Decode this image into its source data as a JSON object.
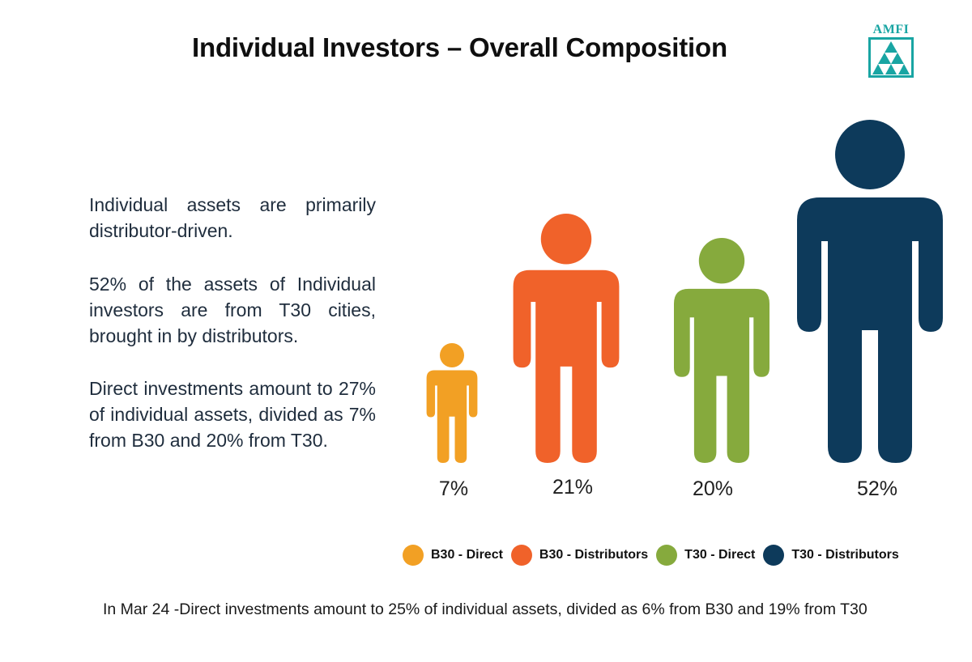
{
  "page": {
    "title": "Individual Investors – Overall Composition",
    "logo_text": "AMFI",
    "paragraphs": [
      "Individual assets are primarily distributor-driven.",
      "52% of the assets of Individual investors are from T30 cities, brought in by distributors.",
      "Direct investments amount to 27% of individual assets, divided as 7% from B30 and 20% from T30."
    ],
    "footnote": "In  Mar 24 -Direct investments amount to 25% of individual assets, divided as 6% from B30 and 19% from T30"
  },
  "chart_data": {
    "type": "pictograph",
    "title": "Individual Investors – Overall Composition",
    "categories": [
      "B30 - Direct",
      "B30 - Distributors",
      "T30 - Direct",
      "T30 - Distributors"
    ],
    "values": [
      7,
      21,
      20,
      52
    ],
    "value_labels": [
      "7%",
      "21%",
      "20%",
      "52%"
    ],
    "colors": [
      "#f2a024",
      "#f0622a",
      "#86aa3d",
      "#0d3a5b"
    ],
    "legend": [
      {
        "label": "B30 - Direct",
        "color": "#f2a024"
      },
      {
        "label": "B30 - Distributors",
        "color": "#f0622a"
      },
      {
        "label": "T30 - Direct",
        "color": "#86aa3d"
      },
      {
        "label": "T30 - Distributors",
        "color": "#0d3a5b"
      }
    ],
    "legend_position": "bottom"
  }
}
